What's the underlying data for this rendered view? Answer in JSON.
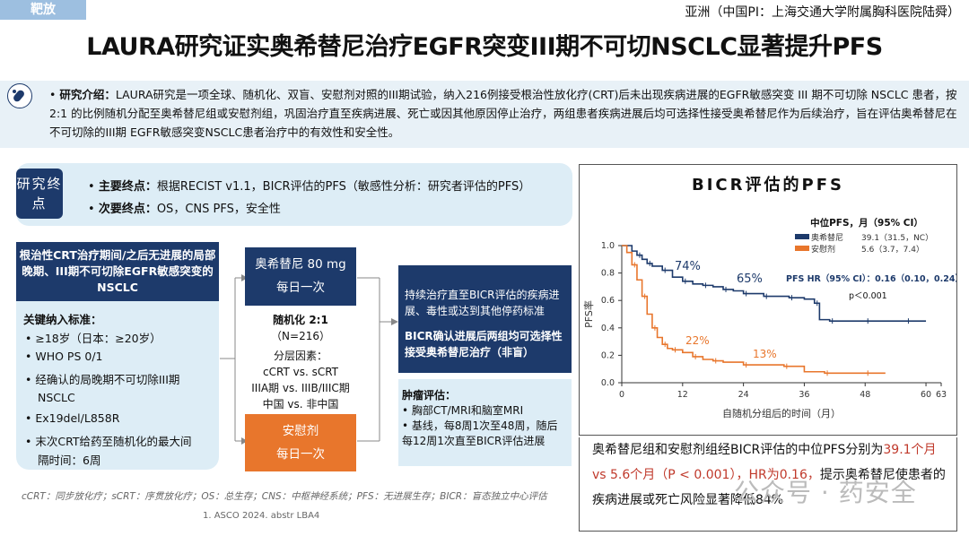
{
  "header": {
    "tag": "靶放",
    "region": "亚洲（中国PI：上海交通大学附属胸科医院陆舜）",
    "title": "LAURA研究证实奥希替尼治疗EGFR突变III期不可切NSCLC显著提升PFS"
  },
  "intro": {
    "label": "研究介绍：",
    "text": "LAURA研究是一项全球、随机化、双盲、安慰剂对照的III期试验，纳入216例接受根治性放化疗(CRT)后未出现疾病进展的EGFR敏感突变 III 期不可切除 NSCLC 患者，按 2:1 的比例随机分配至奥希替尼组或安慰剂组，巩固治疗直至疾病进展、死亡或因其他原因停止治疗，两组患者疾病进展后均可选择性接受奥希替尼作为后续治疗，旨在评估奥希替尼在不可切除的III期 EGFR敏感突变NSCLC患者治疗中的有效性和安全性。"
  },
  "endpoints": {
    "badge": "研究终点",
    "primary_label": "主要终点：",
    "primary_text": "根据RECIST v1.1，BICR评估的PFS（敏感性分析：研究者评估的PFS）",
    "secondary_label": "次要终点：",
    "secondary_text": "OS，CNS PFS，安全性"
  },
  "population": {
    "head": "根治性CRT治疗期间/之后无进展的局部晚期、III期不可切除EGFR敏感突变的NSCLC",
    "criteria_title": "关键纳入标准：",
    "criteria": [
      "≥18岁（日本：≥20岁）",
      "WHO PS 0/1",
      "经确认的局晚期不可切除III期",
      "NSCLC",
      "Ex19del/L858R",
      "末次CRT给药至随机化的最大间",
      "隔时间：6周"
    ]
  },
  "arms": {
    "osimertinib": [
      "奥希替尼 80 mg",
      "每日一次"
    ],
    "placebo": [
      "安慰剂",
      "每日一次"
    ]
  },
  "randomization": {
    "title": "随机化  2:1",
    "n": "（N=216）",
    "strat_title": "分层因素：",
    "strat_lines": [
      "cCRT vs. sCRT",
      "IIIA期 vs. IIIB/IIIC期",
      "中国 vs. 非中国"
    ]
  },
  "outcome": {
    "text1": "持续治疗直至BICR评估的疾病进展、毒性或达到其他停药标准",
    "text2": "BICR确认进展后两组均可选择性接受奥希替尼治疗（非盲）"
  },
  "tumor": {
    "title": "肿瘤评估：",
    "items": [
      "胸部CT/MRI和脑室MRI",
      "基线，每8周1次至48周，随后每12周1次直至BICR评估进展"
    ]
  },
  "footnote": "cCRT：同步放化疗；sCRT：序贯放化疗；OS：总生存；CNS：中枢神经系统；PFS：无进展生存；BICR：盲态独立中心评估",
  "reference": "1.    ASCO 2024. abstr LBA4",
  "chart_data": {
    "type": "line",
    "title": "BICR评估的PFS",
    "xlabel": "自随机分组后的时间（月）",
    "ylabel": "PFS率",
    "xlim": [
      0,
      63
    ],
    "ylim": [
      0,
      1.0
    ],
    "xticks": [
      0,
      12,
      24,
      36,
      48,
      60,
      63
    ],
    "yticks": [
      0.0,
      0.2,
      0.4,
      0.6,
      0.8,
      1.0
    ],
    "legend_title": "中位PFS，月（95% CI）",
    "series": [
      {
        "name": "奥希替尼",
        "median": "39.1（31.5，NC）",
        "color": "#1d3a6b",
        "x": [
          0,
          2,
          3,
          4,
          5,
          6,
          8,
          10,
          12,
          14,
          16,
          18,
          20,
          22,
          24,
          26,
          28,
          30,
          33,
          36,
          38,
          39,
          41,
          44,
          48,
          52,
          56,
          60
        ],
        "y": [
          1.0,
          0.96,
          0.93,
          0.9,
          0.87,
          0.85,
          0.82,
          0.77,
          0.74,
          0.72,
          0.71,
          0.7,
          0.68,
          0.67,
          0.65,
          0.65,
          0.63,
          0.63,
          0.62,
          0.61,
          0.58,
          0.46,
          0.45,
          0.45,
          0.45,
          0.45,
          0.45,
          0.45
        ]
      },
      {
        "name": "安慰剂",
        "median": "5.6（3.7，7.4）",
        "color": "#e8762c",
        "x": [
          0,
          1,
          2,
          3,
          4,
          5,
          6,
          7,
          8,
          9,
          10,
          12,
          14,
          16,
          18,
          20,
          24,
          28,
          32,
          36,
          40,
          44,
          48,
          52
        ],
        "y": [
          1.0,
          0.95,
          0.86,
          0.75,
          0.63,
          0.5,
          0.4,
          0.33,
          0.28,
          0.25,
          0.24,
          0.22,
          0.19,
          0.17,
          0.16,
          0.15,
          0.13,
          0.13,
          0.12,
          0.08,
          0.07,
          0.07,
          0.07,
          0.07
        ]
      }
    ],
    "annotations": [
      "74%",
      "65%",
      "22%",
      "13%"
    ],
    "hr_text": "PFS HR（95% CI）：0.16（0.10，0.24）",
    "p_text": "p＜0.001"
  },
  "summary": {
    "part1": "奥希替尼组和安慰剂组经BICR评估的中位PFS分别为",
    "red1": "39.1个月 vs 5.6个月（P < 0.001），HR为0.16，",
    "part2": "提示奥希替尼使患者的疾病进展或死亡风险显著降低84%"
  },
  "watermark": "公众号 · 药安全"
}
